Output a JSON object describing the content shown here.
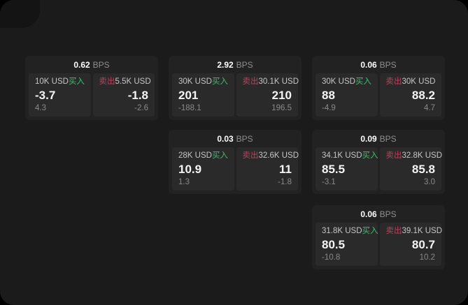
{
  "page": {
    "background": "#1b1b1b",
    "outer_background": "#000000",
    "corner_shape_color": "#141414"
  },
  "colors": {
    "buy": "#3dbd6e",
    "sell": "#c73e5c",
    "card_bg": "#222222",
    "panel_bg": "#2a2a2a",
    "value_text": "#f5f5f5",
    "muted_text": "#8a8a8a"
  },
  "labels": {
    "buy": "买入",
    "sell": "卖出",
    "bps": "BPS"
  },
  "cards": [
    {
      "row": 1,
      "col": 1,
      "bps": "0.62",
      "buy": {
        "size": "10K USD",
        "value": "-3.7",
        "delta": "4.3"
      },
      "sell": {
        "size": "5.5K USD",
        "value": "-1.8",
        "delta": "-2.6"
      }
    },
    {
      "row": 1,
      "col": 2,
      "bps": "2.92",
      "buy": {
        "size": "30K USD",
        "value": "201",
        "delta": "-188.1"
      },
      "sell": {
        "size": "30.1K USD",
        "value": "210",
        "delta": "196.5"
      }
    },
    {
      "row": 1,
      "col": 3,
      "bps": "0.06",
      "buy": {
        "size": "30K USD",
        "value": "88",
        "delta": "-4.9"
      },
      "sell": {
        "size": "30K USD",
        "value": "88.2",
        "delta": "4.7"
      }
    },
    {
      "row": 2,
      "col": 2,
      "bps": "0.03",
      "buy": {
        "size": "28K USD",
        "value": "10.9",
        "delta": "1.3"
      },
      "sell": {
        "size": "32.6K USD",
        "value": "11",
        "delta": "-1.8"
      }
    },
    {
      "row": 2,
      "col": 3,
      "bps": "0.09",
      "buy": {
        "size": "34.1K USD",
        "value": "85.5",
        "delta": "-3.1"
      },
      "sell": {
        "size": "32.8K USD",
        "value": "85.8",
        "delta": "3.0"
      }
    },
    {
      "row": 3,
      "col": 3,
      "bps": "0.06",
      "buy": {
        "size": "31.8K USD",
        "value": "80.5",
        "delta": "-10.8"
      },
      "sell": {
        "size": "39.1K USD",
        "value": "80.7",
        "delta": "10.2"
      }
    }
  ]
}
